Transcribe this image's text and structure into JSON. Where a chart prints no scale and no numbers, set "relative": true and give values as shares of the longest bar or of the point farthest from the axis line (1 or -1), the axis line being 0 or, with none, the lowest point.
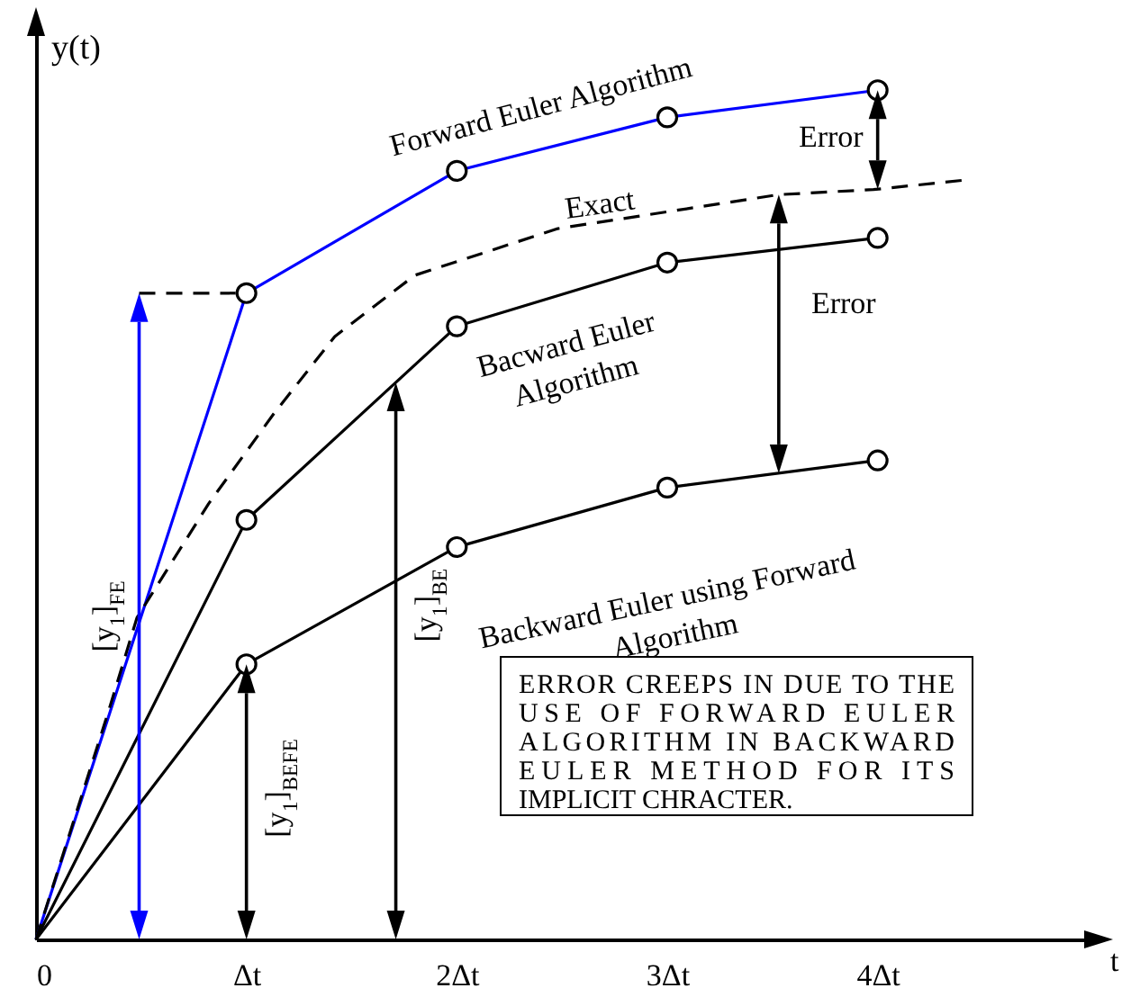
{
  "chart_data": {
    "type": "line",
    "relative": true,
    "xlabel": "t",
    "ylabel": "y(t)",
    "x": [
      0,
      1,
      2,
      3,
      4
    ],
    "xlim": [
      0,
      5.05
    ],
    "xticks": [
      0,
      {
        "value": 1,
        "label": "Δt"
      },
      {
        "value": 2,
        "label": "2Δt"
      },
      {
        "value": 3,
        "label": "3Δt"
      },
      {
        "value": 4,
        "label": "4Δt"
      }
    ],
    "marker": "circle",
    "line_style": "solid",
    "grid": false,
    "series": [
      {
        "name": "Forward Euler Algorithm",
        "color": "#0000ff",
        "values": [
          0,
          0.761,
          0.905,
          0.968,
          1
        ]
      },
      {
        "name": "Exact",
        "color": "#000000",
        "marker": "none",
        "line_style": "dashed",
        "x": [
          0,
          0.34,
          0.48,
          0.82,
          1.13,
          1.42,
          1.8,
          2.48,
          3.53,
          3.98,
          4.41
        ],
        "values": [
          0,
          0.265,
          0.379,
          0.513,
          0.619,
          0.71,
          0.782,
          0.837,
          0.877,
          0.883,
          0.894
        ]
      },
      {
        "name": "Bacward Euler Algorithm",
        "color": "#000000",
        "values": [
          0,
          0.494,
          0.722,
          0.797,
          0.826
        ]
      },
      {
        "name": "Backward Euler using Forward Algorithm",
        "color": "#000000",
        "values": [
          0,
          0.324,
          0.462,
          0.532,
          0.564
        ]
      }
    ],
    "annotations": [
      "[y$_{1}$]$_{FE}$",
      {
        "text": "[y$_{1}$]$_{BEFE}$",
        "x": 1,
        "y": 0.324
      },
      "[y$_{1}$]$_{BE}$",
      {
        "text": "Error",
        "x": 4,
        "y": 1
      },
      "Error",
      "ERROR CREEPS IN DUE TO THE USE OF FORWARD EULER ALGORITHM IN BACKWARD EULER METHOD FOR ITS IMPLICIT CHRACTER."
    ]
  }
}
